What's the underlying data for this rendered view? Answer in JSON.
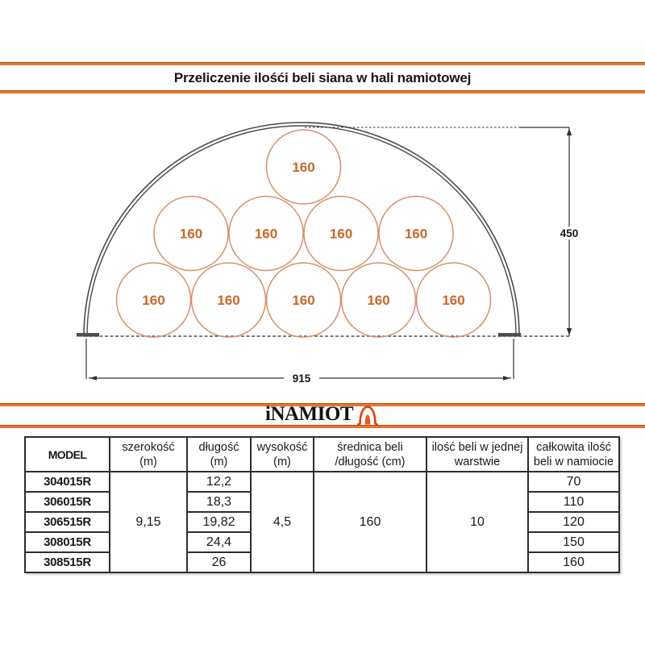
{
  "title": "Przeliczenie ilośći beli siana w hali namiotowej",
  "logo": {
    "text": "iNAMIOT"
  },
  "colors": {
    "accent_orange": "#e8742e",
    "bale_stroke": "#d5906a",
    "bale_text": "#c7682b",
    "drawing_line": "#4b4b4b",
    "logo_red": "#dd4012"
  },
  "diagram": {
    "bale_diameter_label": "160",
    "bale_rows_bottom_to_top": [
      5,
      4,
      1
    ],
    "total_bales": 10,
    "height_dim_label": "450",
    "width_dim_label": "915"
  },
  "table": {
    "headers": [
      {
        "line1": "MODEL",
        "line2": ""
      },
      {
        "line1": "szerokość",
        "line2": "(m)"
      },
      {
        "line1": "długość",
        "line2": "(m)"
      },
      {
        "line1": "wysokość",
        "line2": "(m)"
      },
      {
        "line1": "średnica beli",
        "line2": "/długość (cm)"
      },
      {
        "line1": "ilość beli w jednej",
        "line2": "warstwie"
      },
      {
        "line1": "całkowita ilość",
        "line2": "beli w namiocie"
      }
    ],
    "merged": {
      "szerokosc": "9,15",
      "wysokosc": "4,5",
      "srednica": "160",
      "ilosc_warstwa": "10"
    },
    "rows": [
      {
        "model": "304015R",
        "dlugosc": "12,2",
        "calkowita": "70"
      },
      {
        "model": "306015R",
        "dlugosc": "18,3",
        "calkowita": "110"
      },
      {
        "model": "306515R",
        "dlugosc": "19,82",
        "calkowita": "120"
      },
      {
        "model": "308015R",
        "dlugosc": "24,4",
        "calkowita": "150"
      },
      {
        "model": "308515R",
        "dlugosc": "26",
        "calkowita": "160"
      }
    ]
  }
}
